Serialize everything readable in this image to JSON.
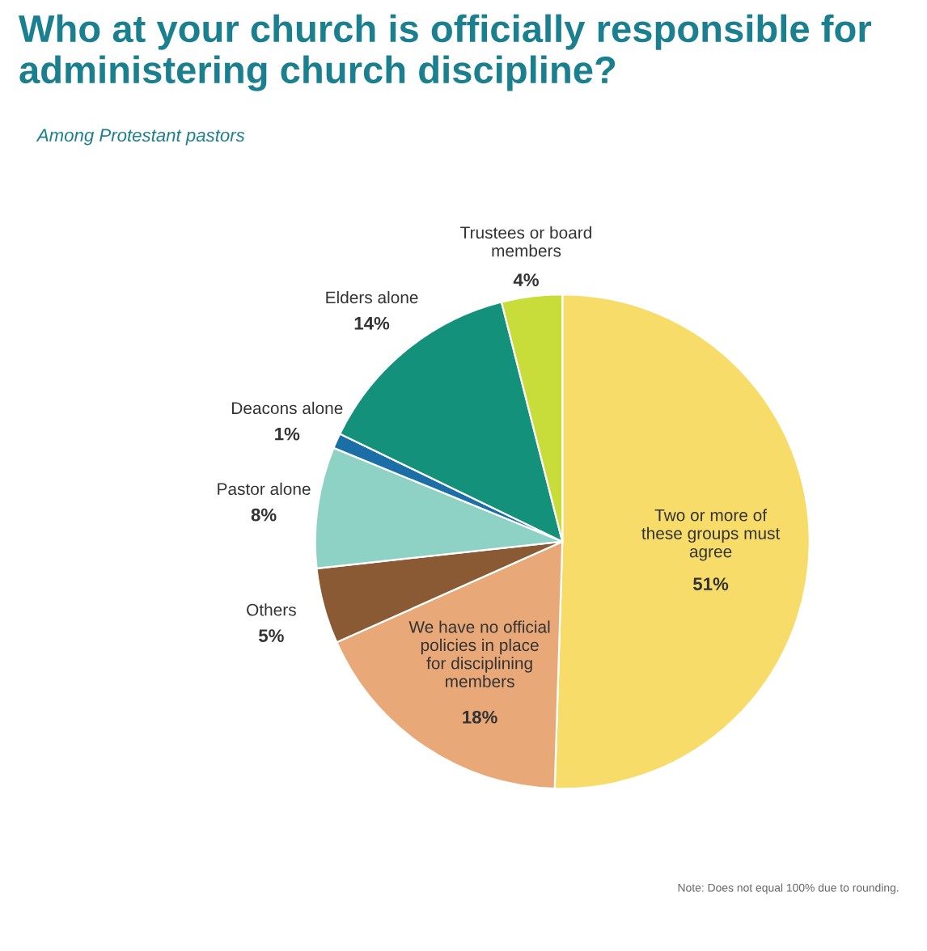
{
  "chart_data": {
    "type": "pie",
    "title": "Who at your church is officially responsible for administering church discipline?",
    "subtitle": "Among Protestant pastors",
    "categories": [
      "Two or more of these groups must agree",
      "We have no official policies in place for disciplining members",
      "Others",
      "Pastor alone",
      "Deacons alone",
      "Elders alone",
      "Trustees or board members"
    ],
    "values": [
      51,
      18,
      5,
      8,
      1,
      14,
      4
    ],
    "colors": [
      "#f8dc6a",
      "#e8a878",
      "#8a5a35",
      "#8ed2c6",
      "#1b6fa6",
      "#13917a",
      "#c9dd3a"
    ],
    "value_labels": [
      "51%",
      "18%",
      "5%",
      "8%",
      "1%",
      "14%",
      "4%"
    ],
    "annotations": [
      "Note: Does not equal 100% due to rounding."
    ]
  }
}
